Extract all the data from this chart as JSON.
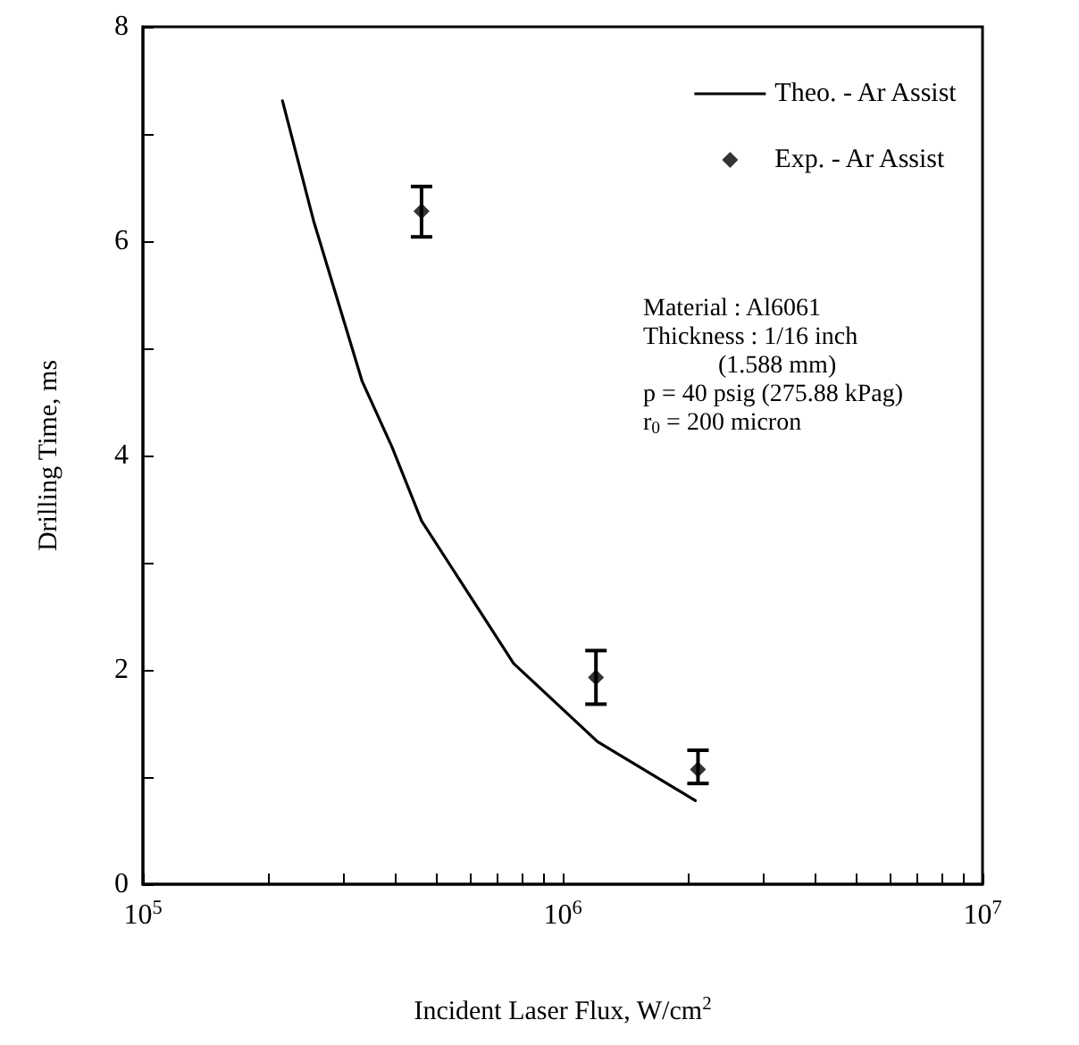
{
  "chart_data": {
    "type": "line",
    "xlabel": "Incident Laser Flux, W/cm$^{2}$",
    "ylabel": "Drilling Time, ms",
    "log": "x",
    "xlim": [
      100000,
      10000000
    ],
    "ylim": [
      0,
      8
    ],
    "xticks": [
      {
        "value": 100000,
        "label": "10$^{5}$"
      },
      {
        "value": 200000,
        "label": null
      },
      {
        "value": 300000,
        "label": null
      },
      {
        "value": 400000,
        "label": null
      },
      {
        "value": 500000,
        "label": null
      },
      {
        "value": 600000,
        "label": null
      },
      {
        "value": 700000,
        "label": null
      },
      {
        "value": 800000,
        "label": null
      },
      {
        "value": 900000,
        "label": null
      },
      {
        "value": 1000000,
        "label": "10$^{6}$"
      },
      {
        "value": 2000000,
        "label": null
      },
      {
        "value": 3000000,
        "label": null
      },
      {
        "value": 4000000,
        "label": null
      },
      {
        "value": 5000000,
        "label": null
      },
      {
        "value": 6000000,
        "label": null
      },
      {
        "value": 7000000,
        "label": null
      },
      {
        "value": 8000000,
        "label": null
      },
      {
        "value": 9000000,
        "label": null
      },
      {
        "value": 10000000,
        "label": "10$^{7}$"
      }
    ],
    "yticks": [
      0,
      {
        "value": 1,
        "label": null
      },
      2,
      {
        "value": 3,
        "label": null
      },
      4,
      {
        "value": 5,
        "label": null
      },
      6,
      {
        "value": 7,
        "label": null
      },
      8
    ],
    "grid": false,
    "legend": "top right",
    "series": [
      {
        "name": "Theo. - Ar Assist",
        "color": "#000000",
        "marker": "none",
        "line_style": "solid",
        "x": [
          215000,
          255000,
          333000,
          392000,
          461000,
          764000,
          1210000,
          2070000
        ],
        "values": [
          7.31,
          6.19,
          4.69,
          4.08,
          3.39,
          2.06,
          1.33,
          0.78
        ]
      },
      {
        "name": "Exp. - Ar Assist",
        "type": "scatter",
        "color": "#000000",
        "marker": "diamond",
        "x": [
          461000,
          1200000,
          2100000
        ],
        "values": [
          6.28,
          1.93,
          1.07
        ],
        "errors": [
          [
            6.04,
            6.51
          ],
          [
            1.68,
            2.18
          ],
          [
            0.94,
            1.25
          ]
        ]
      }
    ],
    "annotations": [
      "Material : Al6061",
      "Thickness : 1/16 inch",
      "(1.588 mm)",
      "p = 40 psig (275.88 kPag)",
      "r$_{0}$ = 200 micron"
    ]
  }
}
